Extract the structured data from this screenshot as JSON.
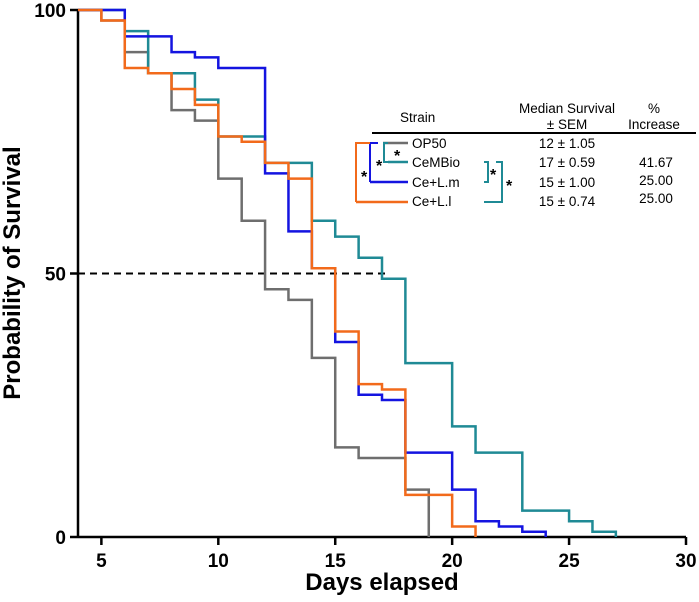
{
  "chart_data": {
    "type": "line",
    "style": "step",
    "title": "",
    "xlabel": "Days elapsed",
    "ylabel": "Probability of Survival",
    "xlim": [
      4,
      30
    ],
    "ylim": [
      0,
      100
    ],
    "xticks": [
      5,
      10,
      15,
      20,
      25,
      30
    ],
    "yticks": [
      0,
      50,
      100
    ],
    "grid": false,
    "median_line": {
      "y": 50,
      "x_start": 4,
      "x_end": 17.3,
      "style": "dashed"
    },
    "series": [
      {
        "name": "OP50",
        "color": "#6e6e6e",
        "points": [
          [
            4,
            100
          ],
          [
            5,
            100
          ],
          [
            5,
            98
          ],
          [
            6,
            98
          ],
          [
            6,
            92
          ],
          [
            7,
            92
          ],
          [
            7,
            88
          ],
          [
            8,
            88
          ],
          [
            8,
            81
          ],
          [
            9,
            81
          ],
          [
            9,
            79
          ],
          [
            10,
            79
          ],
          [
            10,
            68
          ],
          [
            11,
            68
          ],
          [
            11,
            60
          ],
          [
            12,
            60
          ],
          [
            12,
            47
          ],
          [
            13,
            47
          ],
          [
            13,
            45
          ],
          [
            14,
            45
          ],
          [
            14,
            34
          ],
          [
            15,
            34
          ],
          [
            15,
            17
          ],
          [
            16,
            17
          ],
          [
            16,
            15
          ],
          [
            18,
            15
          ],
          [
            18,
            9
          ],
          [
            19,
            9
          ],
          [
            19,
            0
          ]
        ]
      },
      {
        "name": "CeMBio",
        "color": "#1f8a95",
        "points": [
          [
            4,
            100
          ],
          [
            6,
            100
          ],
          [
            6,
            96
          ],
          [
            7,
            96
          ],
          [
            7,
            88
          ],
          [
            9,
            88
          ],
          [
            9,
            83
          ],
          [
            10,
            83
          ],
          [
            10,
            76
          ],
          [
            12,
            76
          ],
          [
            12,
            71
          ],
          [
            14,
            71
          ],
          [
            14,
            60
          ],
          [
            15,
            60
          ],
          [
            15,
            57
          ],
          [
            16,
            57
          ],
          [
            16,
            53
          ],
          [
            17,
            53
          ],
          [
            17,
            49
          ],
          [
            18,
            49
          ],
          [
            18,
            33
          ],
          [
            20,
            33
          ],
          [
            20,
            21
          ],
          [
            21,
            21
          ],
          [
            21,
            16
          ],
          [
            23,
            16
          ],
          [
            23,
            5
          ],
          [
            25,
            5
          ],
          [
            25,
            3
          ],
          [
            26,
            3
          ],
          [
            26,
            1
          ],
          [
            27,
            1
          ],
          [
            27,
            0
          ]
        ]
      },
      {
        "name": "Ce+L.m",
        "color": "#1414e0",
        "points": [
          [
            4,
            100
          ],
          [
            6,
            100
          ],
          [
            6,
            95
          ],
          [
            8,
            95
          ],
          [
            8,
            92
          ],
          [
            9,
            92
          ],
          [
            9,
            91
          ],
          [
            10,
            91
          ],
          [
            10,
            89
          ],
          [
            11,
            89
          ],
          [
            11,
            89
          ],
          [
            12,
            89
          ],
          [
            12,
            69
          ],
          [
            13,
            69
          ],
          [
            13,
            58
          ],
          [
            14,
            58
          ],
          [
            14,
            51
          ],
          [
            15,
            51
          ],
          [
            15,
            37
          ],
          [
            16,
            37
          ],
          [
            16,
            27
          ],
          [
            17,
            27
          ],
          [
            17,
            26
          ],
          [
            18,
            26
          ],
          [
            18,
            16
          ],
          [
            20,
            16
          ],
          [
            20,
            9
          ],
          [
            21,
            9
          ],
          [
            21,
            3
          ],
          [
            22,
            3
          ],
          [
            22,
            2
          ],
          [
            23,
            2
          ],
          [
            23,
            1
          ],
          [
            24,
            1
          ],
          [
            24,
            0
          ]
        ]
      },
      {
        "name": "Ce+L.l",
        "color": "#f26a1b",
        "points": [
          [
            4,
            100
          ],
          [
            5,
            100
          ],
          [
            5,
            98
          ],
          [
            6,
            98
          ],
          [
            6,
            89
          ],
          [
            7,
            89
          ],
          [
            7,
            88
          ],
          [
            8,
            88
          ],
          [
            8,
            85
          ],
          [
            9,
            85
          ],
          [
            9,
            82
          ],
          [
            10,
            82
          ],
          [
            10,
            76
          ],
          [
            11,
            76
          ],
          [
            11,
            75
          ],
          [
            12,
            75
          ],
          [
            12,
            71
          ],
          [
            13,
            71
          ],
          [
            13,
            68
          ],
          [
            14,
            68
          ],
          [
            14,
            51
          ],
          [
            15,
            51
          ],
          [
            15,
            39
          ],
          [
            16,
            39
          ],
          [
            16,
            29
          ],
          [
            17,
            29
          ],
          [
            17,
            28
          ],
          [
            18,
            28
          ],
          [
            18,
            8
          ],
          [
            20,
            8
          ],
          [
            20,
            2
          ],
          [
            21,
            2
          ],
          [
            21,
            0
          ]
        ]
      }
    ],
    "legend": {
      "placement": "top-right",
      "headers": {
        "strain": "Strain",
        "median_line1": "Median Survival",
        "median_line2": "± SEM",
        "increase_line1": "%",
        "increase_line2": "Increase"
      },
      "rows": [
        {
          "strain": "OP50",
          "median": "12 ± 1.05",
          "increase": ""
        },
        {
          "strain": "CeMBio",
          "median": "17 ± 0.59",
          "increase": "41.67"
        },
        {
          "strain": "Ce+L.m",
          "median": "15 ± 1.00",
          "increase": "25.00"
        },
        {
          "strain": "Ce+L.l",
          "median": "15 ± 0.74",
          "increase": "25.00"
        }
      ],
      "significance_marker": "*"
    }
  }
}
